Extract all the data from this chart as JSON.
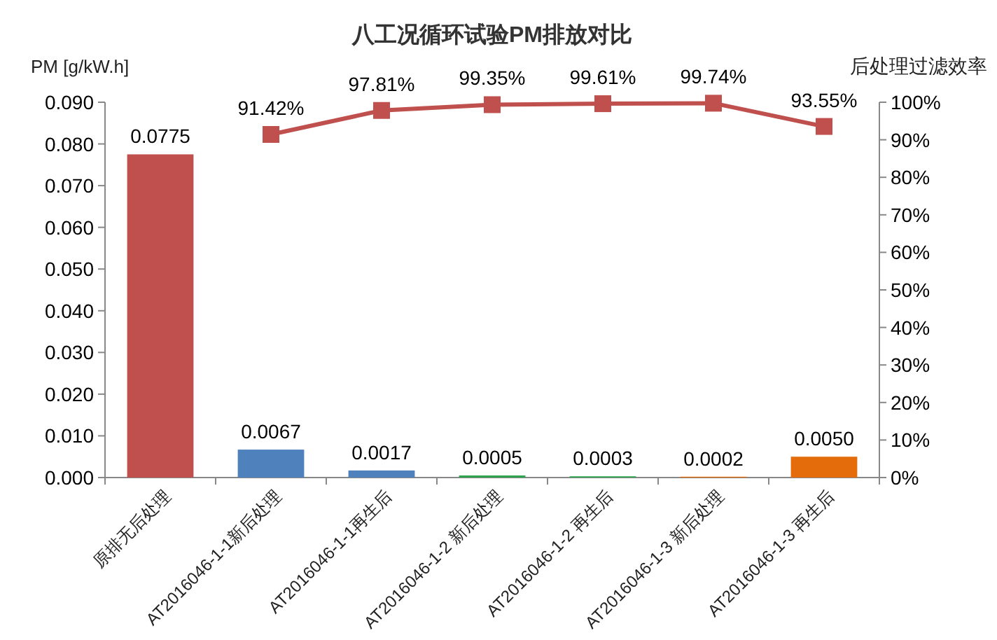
{
  "chart_data": {
    "type": "bar",
    "title": "八工况循环试验PM排放对比",
    "ylabel": "PM [g/kW.h]",
    "y2label": "后处理过滤效率",
    "categories": [
      "原排无后处理",
      "AT2016046-1-1新后处理",
      "AT2016046-1-1再生后",
      "AT2016046-1-2 新后处理",
      "AT2016046-1-2 再生后",
      "AT2016046-1-3 新后处理",
      "AT2016046-1-3 再生后"
    ],
    "series": [
      {
        "colors": [
          "#c0504d",
          "#4f81bd",
          "#4f81bd",
          "#2ea44f",
          "#2ea44f",
          "#e46c0a",
          "#e46c0a"
        ],
        "values": [
          0.0775,
          0.0067,
          0.0017,
          0.0005,
          0.0003,
          0.0002,
          0.005
        ],
        "value_labels": [
          "0.0775",
          "0.0067",
          "0.0017",
          "0.0005",
          "0.0003",
          "0.0002",
          "0.0050"
        ]
      },
      {
        "type": "line",
        "axis": "y2",
        "color": "#c0504d",
        "marker": "square",
        "values": [
          null,
          91.42,
          97.81,
          99.35,
          99.61,
          99.74,
          93.55
        ],
        "value_labels": [
          null,
          "91.42%",
          "97.81%",
          "99.35%",
          "99.61%",
          "99.74%",
          "93.55%"
        ]
      }
    ],
    "ylim": [
      0,
      0.09
    ],
    "yticks": [
      {
        "value": 0,
        "label": "0.000"
      },
      {
        "value": 0.01,
        "label": "0.010"
      },
      {
        "value": 0.02,
        "label": "0.020"
      },
      {
        "value": 0.03,
        "label": "0.030"
      },
      {
        "value": 0.04,
        "label": "0.040"
      },
      {
        "value": 0.05,
        "label": "0.050"
      },
      {
        "value": 0.06,
        "label": "0.060"
      },
      {
        "value": 0.07,
        "label": "0.070"
      },
      {
        "value": 0.08,
        "label": "0.080"
      },
      {
        "value": 0.09,
        "label": "0.090"
      }
    ],
    "y2lim": [
      0,
      100
    ],
    "y2ticks": [
      {
        "value": 0,
        "label": "0%"
      },
      {
        "value": 10,
        "label": "10%"
      },
      {
        "value": 20,
        "label": "20%"
      },
      {
        "value": 30,
        "label": "30%"
      },
      {
        "value": 40,
        "label": "40%"
      },
      {
        "value": 50,
        "label": "50%"
      },
      {
        "value": 60,
        "label": "60%"
      },
      {
        "value": 70,
        "label": "70%"
      },
      {
        "value": 80,
        "label": "80%"
      },
      {
        "value": 90,
        "label": "90%"
      },
      {
        "value": 100,
        "label": "100%"
      }
    ],
    "grid": false
  }
}
